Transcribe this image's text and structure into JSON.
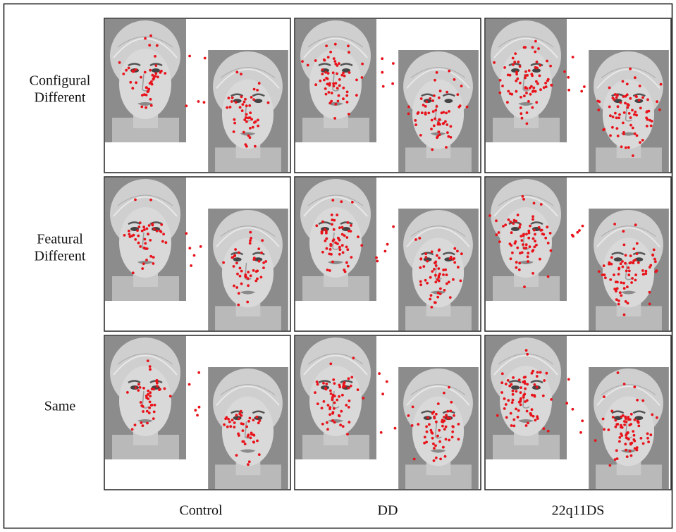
{
  "row_labels": [
    [
      "Configural",
      "Different"
    ],
    [
      "Featural",
      "Different"
    ],
    [
      "Same"
    ]
  ],
  "column_labels": [
    "Control",
    "DD",
    "22q11DS"
  ]
}
